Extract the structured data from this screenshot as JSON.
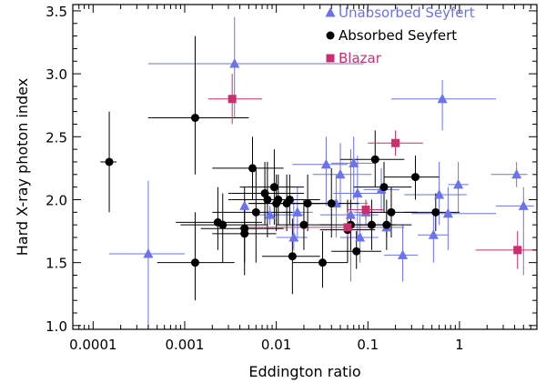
{
  "chart_data": {
    "type": "scatter",
    "title": "",
    "xlabel": "Eddington ratio",
    "ylabel": "Hard X-ray photon index",
    "xscale": "log",
    "xlim": [
      6e-05,
      7
    ],
    "ylim": [
      0.97,
      3.55
    ],
    "x_ticks": [
      {
        "value": 0.0001,
        "label": "0.0001"
      },
      {
        "value": 0.001,
        "label": "0.001"
      },
      {
        "value": 0.01,
        "label": "0.01"
      },
      {
        "value": 0.1,
        "label": "0.1"
      },
      {
        "value": 1,
        "label": "1"
      }
    ],
    "y_ticks": [
      {
        "value": 1.0,
        "label": "1.0"
      },
      {
        "value": 1.5,
        "label": "1.5"
      },
      {
        "value": 2.0,
        "label": "2.0"
      },
      {
        "value": 2.5,
        "label": "2.5"
      },
      {
        "value": 3.0,
        "label": "3.0"
      },
      {
        "value": 3.5,
        "label": "3.5"
      }
    ],
    "grid": false,
    "legend_position": "top-right",
    "series": [
      {
        "name": "Unabsorbed Seyfert",
        "color": "#6b72f0",
        "marker": "triangle",
        "points": [
          {
            "x": 0.0004,
            "y": 1.57,
            "xerr": [
              0.00015,
              0.001
            ],
            "yerr": [
              0.97,
              2.15
            ]
          },
          {
            "x": 0.0035,
            "y": 3.08,
            "xerr": [
              0.0004,
              0.09
            ],
            "yerr": [
              2.65,
              3.45
            ]
          },
          {
            "x": 0.0045,
            "y": 1.95,
            "xerr": [
              0.0042,
              0.0049
            ],
            "yerr": [
              1.9,
              2.0
            ]
          },
          {
            "x": 0.0085,
            "y": 1.88,
            "xerr": [
              0.006,
              0.02
            ],
            "yerr": [
              1.8,
              1.95
            ]
          },
          {
            "x": 0.0155,
            "y": 1.7,
            "xerr": [
              0.01,
              0.022
            ],
            "yerr": [
              1.6,
              2.0
            ]
          },
          {
            "x": 0.017,
            "y": 1.9,
            "xerr": [
              0.012,
              0.025
            ],
            "yerr": [
              1.7,
              2.1
            ]
          },
          {
            "x": 0.035,
            "y": 2.28,
            "xerr": [
              0.015,
              0.06
            ],
            "yerr": [
              1.95,
              2.5
            ]
          },
          {
            "x": 0.045,
            "y": 1.97,
            "xerr": [
              0.02,
              0.1
            ],
            "yerr": [
              1.7,
              2.2
            ]
          },
          {
            "x": 0.05,
            "y": 2.2,
            "xerr": [
              0.025,
              0.11
            ],
            "yerr": [
              1.95,
              2.45
            ]
          },
          {
            "x": 0.065,
            "y": 1.88,
            "xerr": [
              0.03,
              0.13
            ],
            "yerr": [
              1.35,
              2.4
            ]
          },
          {
            "x": 0.07,
            "y": 2.29,
            "xerr": [
              0.04,
              0.12
            ],
            "yerr": [
              2.0,
              2.5
            ]
          },
          {
            "x": 0.077,
            "y": 2.05,
            "xerr": [
              0.042,
              0.15
            ],
            "yerr": [
              1.7,
              2.35
            ]
          },
          {
            "x": 0.082,
            "y": 1.7,
            "xerr": [
              0.05,
              0.13
            ],
            "yerr": [
              1.5,
              1.9
            ]
          },
          {
            "x": 0.095,
            "y": 1.9,
            "xerr": [
              0.07,
              0.13
            ],
            "yerr": [
              1.8,
              2.0
            ]
          },
          {
            "x": 0.14,
            "y": 2.08,
            "xerr": [
              0.09,
              0.22
            ],
            "yerr": [
              1.9,
              2.25
            ]
          },
          {
            "x": 0.16,
            "y": 1.78,
            "xerr": [
              0.1,
              0.25
            ],
            "yerr": [
              1.7,
              1.9
            ]
          },
          {
            "x": 0.24,
            "y": 1.56,
            "xerr": [
              0.15,
              0.35
            ],
            "yerr": [
              1.35,
              1.8
            ]
          },
          {
            "x": 0.52,
            "y": 1.72,
            "xerr": [
              0.35,
              0.75
            ],
            "yerr": [
              1.5,
              1.9
            ]
          },
          {
            "x": 0.6,
            "y": 2.04,
            "xerr": [
              0.25,
              1.2
            ],
            "yerr": [
              1.8,
              2.3
            ]
          },
          {
            "x": 0.65,
            "y": 2.8,
            "xerr": [
              0.18,
              2.5
            ],
            "yerr": [
              2.55,
              2.95
            ]
          },
          {
            "x": 0.75,
            "y": 1.89,
            "xerr": [
              0.3,
              2.5
            ],
            "yerr": [
              1.6,
              2.1
            ]
          },
          {
            "x": 0.97,
            "y": 2.12,
            "xerr": [
              0.75,
              1.25
            ],
            "yerr": [
              1.9,
              2.3
            ]
          },
          {
            "x": 4.2,
            "y": 2.2,
            "xerr": [
              2.2,
              5.5
            ],
            "yerr": [
              2.1,
              2.3
            ]
          },
          {
            "x": 5.0,
            "y": 1.95,
            "xerr": [
              2.5,
              6.5
            ],
            "yerr": [
              1.4,
              2.1
            ]
          }
        ]
      },
      {
        "name": "Absorbed Seyfert",
        "color": "#000000",
        "marker": "circle",
        "points": [
          {
            "x": 0.00015,
            "y": 2.3,
            "xerr": [
              0.00012,
              0.00018
            ],
            "yerr": [
              1.9,
              2.7
            ]
          },
          {
            "x": 0.0013,
            "y": 2.65,
            "xerr": [
              0.0004,
              0.005
            ],
            "yerr": [
              2.2,
              3.3
            ]
          },
          {
            "x": 0.0013,
            "y": 1.5,
            "xerr": [
              0.0005,
              0.0035
            ],
            "yerr": [
              1.2,
              1.9
            ]
          },
          {
            "x": 0.0023,
            "y": 1.82,
            "xerr": [
              0.0008,
              0.007
            ],
            "yerr": [
              1.6,
              2.1
            ]
          },
          {
            "x": 0.0026,
            "y": 1.8,
            "xerr": [
              0.0009,
              0.008
            ],
            "yerr": [
              1.5,
              2.05
            ]
          },
          {
            "x": 0.0045,
            "y": 1.77,
            "xerr": [
              0.0015,
              0.012
            ],
            "yerr": [
              1.5,
              2.0
            ]
          },
          {
            "x": 0.0045,
            "y": 1.73,
            "xerr": [
              0.002,
              0.01
            ],
            "yerr": [
              1.4,
              2.1
            ]
          },
          {
            "x": 0.0055,
            "y": 2.25,
            "xerr": [
              0.002,
              0.012
            ],
            "yerr": [
              2.0,
              2.5
            ]
          },
          {
            "x": 0.006,
            "y": 1.9,
            "xerr": [
              0.002,
              0.015
            ],
            "yerr": [
              1.5,
              2.25
            ]
          },
          {
            "x": 0.0075,
            "y": 2.05,
            "xerr": [
              0.003,
              0.02
            ],
            "yerr": [
              1.8,
              2.3
            ]
          },
          {
            "x": 0.008,
            "y": 2.0,
            "xerr": [
              0.003,
              0.025
            ],
            "yerr": [
              1.7,
              2.3
            ]
          },
          {
            "x": 0.0095,
            "y": 2.1,
            "xerr": [
              0.004,
              0.02
            ],
            "yerr": [
              1.8,
              2.4
            ]
          },
          {
            "x": 0.01,
            "y": 1.97,
            "xerr": [
              0.005,
              0.02
            ],
            "yerr": [
              1.75,
              2.2
            ]
          },
          {
            "x": 0.0105,
            "y": 2.0,
            "xerr": [
              0.005,
              0.02
            ],
            "yerr": [
              1.8,
              2.2
            ]
          },
          {
            "x": 0.013,
            "y": 1.97,
            "xerr": [
              0.005,
              0.03
            ],
            "yerr": [
              1.75,
              2.2
            ]
          },
          {
            "x": 0.014,
            "y": 2.0,
            "xerr": [
              0.006,
              0.03
            ],
            "yerr": [
              1.8,
              2.2
            ]
          },
          {
            "x": 0.015,
            "y": 1.55,
            "xerr": [
              0.007,
              0.03
            ],
            "yerr": [
              1.25,
              1.85
            ]
          },
          {
            "x": 0.02,
            "y": 1.8,
            "xerr": [
              0.01,
              0.04
            ],
            "yerr": [
              1.6,
              2.0
            ]
          },
          {
            "x": 0.022,
            "y": 1.97,
            "xerr": [
              0.01,
              0.05
            ],
            "yerr": [
              1.75,
              2.2
            ]
          },
          {
            "x": 0.032,
            "y": 1.5,
            "xerr": [
              0.015,
              0.06
            ],
            "yerr": [
              1.3,
              1.75
            ]
          },
          {
            "x": 0.04,
            "y": 1.97,
            "xerr": [
              0.02,
              0.08
            ],
            "yerr": [
              1.7,
              2.25
            ]
          },
          {
            "x": 0.06,
            "y": 1.76,
            "xerr": [
              0.03,
              0.12
            ],
            "yerr": [
              1.5,
              2.0
            ]
          },
          {
            "x": 0.065,
            "y": 1.8,
            "xerr": [
              0.03,
              0.12
            ],
            "yerr": [
              1.6,
              2.0
            ]
          },
          {
            "x": 0.075,
            "y": 1.59,
            "xerr": [
              0.04,
              0.14
            ],
            "yerr": [
              1.45,
              1.75
            ]
          },
          {
            "x": 0.11,
            "y": 1.8,
            "xerr": [
              0.06,
              0.2
            ],
            "yerr": [
              1.6,
              2.0
            ]
          },
          {
            "x": 0.12,
            "y": 2.32,
            "xerr": [
              0.05,
              0.25
            ],
            "yerr": [
              2.1,
              2.55
            ]
          },
          {
            "x": 0.15,
            "y": 2.1,
            "xerr": [
              0.07,
              0.3
            ],
            "yerr": [
              1.9,
              2.3
            ]
          },
          {
            "x": 0.16,
            "y": 1.8,
            "xerr": [
              0.08,
              0.3
            ],
            "yerr": [
              1.6,
              2.0
            ]
          },
          {
            "x": 0.18,
            "y": 1.9,
            "xerr": [
              0.09,
              0.35
            ],
            "yerr": [
              1.7,
              2.1
            ]
          },
          {
            "x": 0.33,
            "y": 2.18,
            "xerr": [
              0.15,
              0.6
            ],
            "yerr": [
              2.0,
              2.35
            ]
          },
          {
            "x": 0.55,
            "y": 1.9,
            "xerr": [
              0.25,
              1.0
            ],
            "yerr": [
              1.75,
              2.05
            ]
          }
        ]
      },
      {
        "name": "Blazar",
        "color": "#c9306d",
        "marker": "square",
        "points": [
          {
            "x": 0.0033,
            "y": 2.8,
            "xerr": [
              0.0018,
              0.007
            ],
            "yerr": [
              2.6,
              3.0
            ]
          },
          {
            "x": 0.06,
            "y": 1.78,
            "xerr": [
              0.004,
              0.11
            ],
            "yerr": [
              1.7,
              1.9
            ]
          },
          {
            "x": 0.095,
            "y": 1.92,
            "xerr": [
              0.06,
              0.15
            ],
            "yerr": [
              1.85,
              2.0
            ]
          },
          {
            "x": 0.2,
            "y": 2.45,
            "xerr": [
              0.1,
              0.4
            ],
            "yerr": [
              2.35,
              2.55
            ]
          },
          {
            "x": 4.3,
            "y": 1.6,
            "xerr": [
              1.5,
              7.0
            ],
            "yerr": [
              1.45,
              1.75
            ]
          }
        ]
      }
    ]
  }
}
